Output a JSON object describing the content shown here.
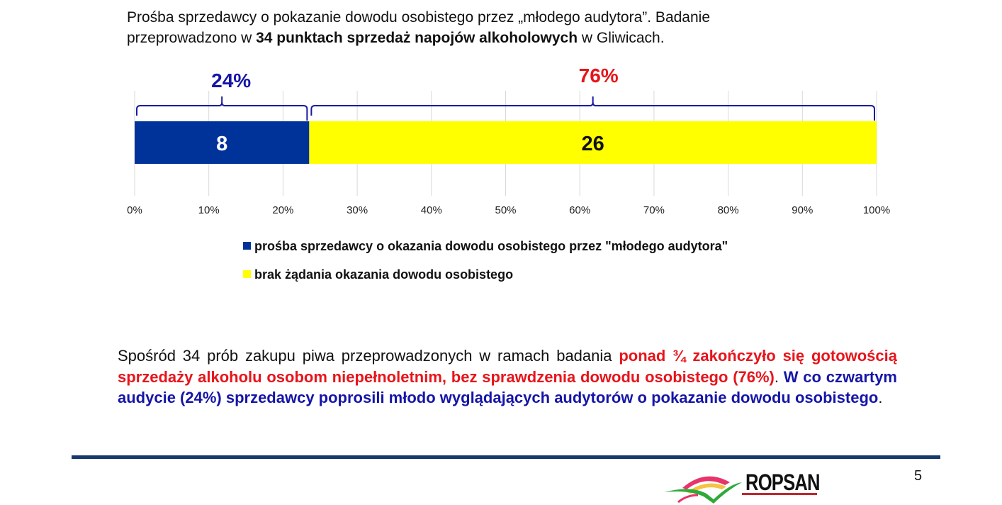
{
  "intro": {
    "line1": "Prośba sprzedawcy o pokazanie dowodu osobistego przez „młodego audytora”. Badanie",
    "line2_pre": "przeprowadzono w ",
    "line2_bold": "34 punktach sprzedaż napojów alkoholowych",
    "line2_post": " w Gliwicach."
  },
  "chart_data": {
    "type": "bar",
    "orientation": "horizontal-stacked-100",
    "categories": [
      ""
    ],
    "series": [
      {
        "name": "prośba sprzedawcy o okazania dowodu osobistego przez \"młodego audytora\"",
        "values": [
          8
        ],
        "percent": "24%",
        "color": "#003399"
      },
      {
        "name": "brak żądania okazania dowodu osobistego",
        "values": [
          26
        ],
        "percent": "76%",
        "color": "#ffff00"
      }
    ],
    "total": 34,
    "xlim": [
      0,
      100
    ],
    "xticks": [
      "0%",
      "10%",
      "20%",
      "30%",
      "40%",
      "50%",
      "60%",
      "70%",
      "80%",
      "90%",
      "100%"
    ],
    "grid": true,
    "legend_position": "bottom",
    "annotation_colors": [
      "#1515a8",
      "#e8141b"
    ]
  },
  "paragraph": {
    "black1": "Spośród 34 prób zakupu piwa przeprowadzonych w ramach badania ",
    "red1": "ponad ¾ zakończyło się gotowością sprzedaży alkoholu osobom niepełnoletnim, bez sprawdzenia dowodu osobistego (76%)",
    "black2": ". ",
    "blue1": "W co czwartym audycie (24%) sprzedawcy poprosili młodo wyglądających audytorów o pokazanie dowodu osobistego",
    "black3": "."
  },
  "footer": {
    "logo_text": "ROPSAN",
    "page_number": "5"
  }
}
